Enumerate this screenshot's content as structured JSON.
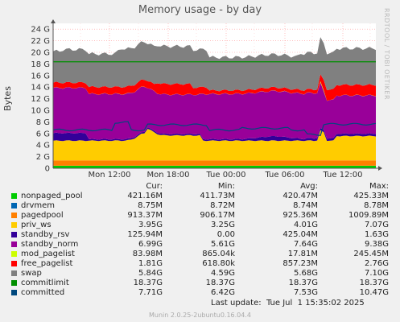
{
  "title": "Memory usage - by day",
  "side_label": "RRDTOOL / TOBI OETIKER",
  "chart_data": {
    "type": "area",
    "title": "Memory usage - by day",
    "ylabel": "Bytes",
    "xlabel": "",
    "ylim": [
      0,
      25
    ],
    "y_unit": "G",
    "y_ticks": [
      "0",
      "2 G",
      "4 G",
      "6 G",
      "8 G",
      "10 G",
      "12 G",
      "14 G",
      "16 G",
      "18 G",
      "20 G",
      "22 G",
      "24 G"
    ],
    "x_ticks": [
      "Mon 12:00",
      "Mon 18:00",
      "Tue 00:00",
      "Tue 06:00",
      "Tue 12:00"
    ],
    "grid": true,
    "stacked_series": [
      {
        "name": "nonpaged_pool",
        "color": "#00cc00",
        "avg_gb": 0.42
      },
      {
        "name": "drvmem",
        "color": "#0066b3",
        "avg_gb": 0.009
      },
      {
        "name": "pagedpool",
        "color": "#ff8000",
        "avg_gb": 0.93
      },
      {
        "name": "priv_ws",
        "color": "#ffcc00",
        "avg_gb": 4.01
      },
      {
        "name": "standby_rsv",
        "color": "#330099",
        "avg_gb": 0.43
      },
      {
        "name": "standby_norm",
        "color": "#990099",
        "avg_gb": 7.64
      },
      {
        "name": "mod_pagelist",
        "color": "#ccff00",
        "avg_gb": 0.018
      },
      {
        "name": "free_pagelist",
        "color": "#ff0000",
        "avg_gb": 0.86
      },
      {
        "name": "swap",
        "color": "#808080",
        "avg_gb": 5.68
      }
    ],
    "line_series": [
      {
        "name": "commitlimit",
        "color": "#008f00",
        "value_gb": 18.37
      },
      {
        "name": "committed",
        "color": "#00487d",
        "avg_gb": 7.53
      }
    ]
  },
  "legend": {
    "headers": {
      "cur": "Cur:",
      "min": "Min:",
      "avg": "Avg:",
      "max": "Max:"
    },
    "rows": [
      {
        "name": "nonpaged_pool",
        "color": "#00cc00",
        "cur": "421.16M",
        "min": "411.73M",
        "avg": "420.47M",
        "max": "425.33M"
      },
      {
        "name": "drvmem",
        "color": "#0066b3",
        "cur": "8.75M",
        "min": "8.72M",
        "avg": "8.74M",
        "max": "8.78M"
      },
      {
        "name": "pagedpool",
        "color": "#ff8000",
        "cur": "913.37M",
        "min": "906.17M",
        "avg": "925.36M",
        "max": "1009.89M"
      },
      {
        "name": "priv_ws",
        "color": "#ffcc00",
        "cur": "3.95G",
        "min": "3.25G",
        "avg": "4.01G",
        "max": "7.07G"
      },
      {
        "name": "standby_rsv",
        "color": "#330099",
        "cur": "125.94M",
        "min": "0.00",
        "avg": "425.04M",
        "max": "1.63G"
      },
      {
        "name": "standby_norm",
        "color": "#990099",
        "cur": "6.99G",
        "min": "5.61G",
        "avg": "7.64G",
        "max": "9.38G"
      },
      {
        "name": "mod_pagelist",
        "color": "#ccff00",
        "cur": "83.98M",
        "min": "865.04k",
        "avg": "17.81M",
        "max": "245.45M"
      },
      {
        "name": "free_pagelist",
        "color": "#ff0000",
        "cur": "1.81G",
        "min": "618.80k",
        "avg": "857.23M",
        "max": "2.76G"
      },
      {
        "name": "swap",
        "color": "#808080",
        "cur": "5.84G",
        "min": "4.59G",
        "avg": "5.68G",
        "max": "7.10G"
      },
      {
        "name": "commitlimit",
        "color": "#008f00",
        "cur": "18.37G",
        "min": "18.37G",
        "avg": "18.37G",
        "max": "18.37G"
      },
      {
        "name": "committed",
        "color": "#00487d",
        "cur": "7.71G",
        "min": "6.42G",
        "avg": "7.53G",
        "max": "10.47G"
      }
    ]
  },
  "last_update": "Last update:  Tue Jul  1 15:35:02 2025",
  "footer": "Munin 2.0.25-2ubuntu0.16.04.4"
}
